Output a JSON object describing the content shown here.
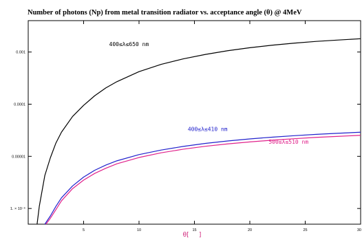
{
  "chart_data": {
    "type": "line",
    "title": "Number of photons (Np) from metal transition radiator vs. acceptance angle (θ) @ 4MeV",
    "xlabel": "θ[     ]",
    "ylabel": "",
    "xlim": [
      0,
      30
    ],
    "ylim": [
      5e-07,
      0.004
    ],
    "yscale": "log",
    "grid": false,
    "x_ticks": [
      "5",
      "10",
      "15",
      "20",
      "25",
      "30"
    ],
    "x_tick_values": [
      5,
      10,
      15,
      20,
      25,
      30
    ],
    "y_ticks": [
      "1. × 10⁻⁶",
      "0.00001",
      "0.0001",
      "0.001"
    ],
    "y_tick_values": [
      1e-06,
      1e-05,
      0.0001,
      0.001
    ],
    "series": [
      {
        "name": "400≤λ≤650  nm",
        "color": "#000000",
        "x": [
          0.8,
          1,
          1.5,
          2,
          2.5,
          3,
          4,
          5,
          6,
          7,
          8,
          10,
          12,
          14,
          16,
          18,
          20,
          22,
          24,
          26,
          28,
          30
        ],
        "y": [
          5e-07,
          1.1e-06,
          4.3e-06,
          9.4e-06,
          1.8e-05,
          2.9e-05,
          5.8e-05,
          9.5e-05,
          0.000145,
          0.000205,
          0.00027,
          0.00042,
          0.00058,
          0.00074,
          0.0009,
          0.00106,
          0.00121,
          0.00135,
          0.00148,
          0.0016,
          0.0017,
          0.0018
        ]
      },
      {
        "name": "400≤λ≤410  nm",
        "color": "#2020cc",
        "x": [
          1.5,
          2,
          2.5,
          3,
          4,
          5,
          6,
          7,
          8,
          10,
          12,
          14,
          16,
          18,
          20,
          22,
          24,
          26,
          28,
          30
        ],
        "y": [
          5e-07,
          7.2e-07,
          1.1e-06,
          1.6e-06,
          2.7e-06,
          4e-06,
          5.4e-06,
          6.8e-06,
          8.2e-06,
          1.08e-05,
          1.32e-05,
          1.55e-05,
          1.77e-05,
          1.97e-05,
          2.16e-05,
          2.33e-05,
          2.49e-05,
          2.64e-05,
          2.77e-05,
          2.9e-05
        ]
      },
      {
        "name": "500≤λ≤510  nm",
        "color": "#e0208a",
        "x": [
          1.6,
          2,
          2.5,
          3,
          4,
          5,
          6,
          7,
          8,
          10,
          12,
          14,
          16,
          18,
          20,
          22,
          24,
          26,
          28,
          30
        ],
        "y": [
          5e-07,
          6.5e-07,
          9.5e-07,
          1.4e-06,
          2.4e-06,
          3.5e-06,
          4.7e-06,
          5.9e-06,
          7.2e-06,
          9.5e-06,
          1.17e-05,
          1.37e-05,
          1.56e-05,
          1.73e-05,
          1.89e-05,
          2.04e-05,
          2.18e-05,
          2.31e-05,
          2.42e-05,
          2.53e-05
        ]
      }
    ],
    "annotations": [
      {
        "series": 0,
        "text": "400≤λ≤650  nm",
        "color": "#000000",
        "x": 7.3,
        "y": 0.0013
      },
      {
        "series": 1,
        "text": "400≤λ≤410  nm",
        "color": "#2020cc",
        "x": 14.4,
        "y": 3.05e-05
      },
      {
        "series": 2,
        "text": "500≤λ≤510  nm",
        "color": "#e0208a",
        "x": 21.7,
        "y": 1.75e-05
      }
    ]
  }
}
